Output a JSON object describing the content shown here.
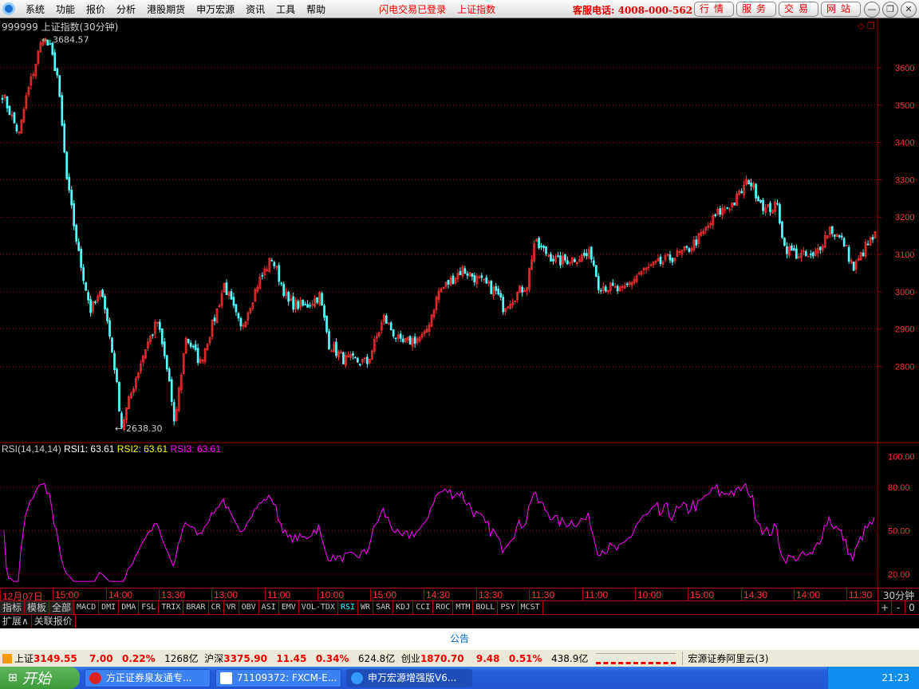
{
  "menubar": {
    "items": [
      "系统",
      "功能",
      "报价",
      "分析",
      "港股期货",
      "申万宏源",
      "资讯",
      "工具",
      "帮助"
    ],
    "status1": "闪电交易已登录",
    "status2": "上证指数",
    "hotline": "客服电话: 4008-000-562",
    "buttons": [
      "行情",
      "服务",
      "交易",
      "网站"
    ]
  },
  "chart": {
    "title": "999999 上证指数(30分钟)",
    "high_label": "3684.57",
    "low_label": "2638.30",
    "price_ticks": [
      3600,
      3500,
      3400,
      3300,
      3200,
      3100,
      3000,
      2900,
      2800
    ],
    "colors": {
      "up": "#ff3232",
      "down": "#54ffff",
      "grid": "#a00000",
      "rsi": "#ff00ff"
    }
  },
  "chart_data": {
    "type": "candlestick",
    "series_name": "上证指数",
    "approx_close_path": [
      [
        0,
        3530
      ],
      [
        7,
        3420
      ],
      [
        10,
        3520
      ],
      [
        17,
        3684
      ],
      [
        20,
        3650
      ],
      [
        23,
        3580
      ],
      [
        27,
        3300
      ],
      [
        32,
        3100
      ],
      [
        37,
        2950
      ],
      [
        42,
        3000
      ],
      [
        47,
        2800
      ],
      [
        50,
        2640
      ],
      [
        55,
        2750
      ],
      [
        60,
        2850
      ],
      [
        65,
        2920
      ],
      [
        70,
        2760
      ],
      [
        72,
        2640
      ],
      [
        77,
        2880
      ],
      [
        83,
        2810
      ],
      [
        90,
        2950
      ],
      [
        93,
        3020
      ],
      [
        100,
        2900
      ],
      [
        107,
        3020
      ],
      [
        113,
        3090
      ],
      [
        120,
        2970
      ],
      [
        127,
        2960
      ],
      [
        133,
        2990
      ],
      [
        137,
        2860
      ],
      [
        143,
        2820
      ],
      [
        153,
        2810
      ],
      [
        160,
        2930
      ],
      [
        167,
        2860
      ],
      [
        177,
        2880
      ],
      [
        183,
        3000
      ],
      [
        193,
        3060
      ],
      [
        207,
        3000
      ],
      [
        210,
        2960
      ],
      [
        220,
        3020
      ],
      [
        223,
        3130
      ],
      [
        233,
        3080
      ],
      [
        247,
        3100
      ],
      [
        250,
        3020
      ],
      [
        260,
        3000
      ],
      [
        267,
        3050
      ],
      [
        277,
        3080
      ],
      [
        287,
        3110
      ],
      [
        293,
        3150
      ],
      [
        300,
        3210
      ],
      [
        307,
        3240
      ],
      [
        313,
        3300
      ],
      [
        320,
        3220
      ],
      [
        325,
        3230
      ],
      [
        328,
        3120
      ],
      [
        333,
        3100
      ],
      [
        340,
        3090
      ],
      [
        347,
        3170
      ],
      [
        353,
        3130
      ],
      [
        357,
        3060
      ],
      [
        362,
        3120
      ],
      [
        366,
        3150
      ]
    ],
    "ylim": [
      2550,
      3720
    ]
  },
  "rsi": {
    "params": "RSI(14,14,14)",
    "rsi1": "RSI1: 63.61",
    "rsi2": "RSI2: 63.61",
    "rsi3": "RSI3: 63.61",
    "ticks": [
      "100.00",
      "80.00",
      "50.00",
      "20.00"
    ]
  },
  "timeaxis": {
    "labels": [
      "12月07日",
      "15:00",
      "14:00",
      "13:30",
      "13:00",
      "11:00",
      "10:00",
      "15:00",
      "14:30",
      "13:30",
      "11:30",
      "11:00",
      "10:00",
      "15:00",
      "14:30",
      "14:00",
      "11:30"
    ],
    "period": "30分钟"
  },
  "tabs": [
    "指标",
    "模板",
    "全部",
    "MACD",
    "DMI",
    "DMA",
    "FSL",
    "TRIX",
    "BRAR",
    "CR",
    "VR",
    "OBV",
    "ASI",
    "EMV",
    "VOL-TDX",
    "RSI",
    "WR",
    "SAR",
    "KDJ",
    "CCI",
    "ROC",
    "MTM",
    "BOLL",
    "PSY",
    "MCST"
  ],
  "zoom": [
    "+",
    "-",
    "0"
  ],
  "ext": [
    "扩展∧",
    "关联报价"
  ],
  "notice": "公告",
  "status": {
    "sh_label": "上证",
    "sh_val": "3149.55",
    "sh_chg": "7.00",
    "sh_pct": "0.22%",
    "sh_amt": "1268亿",
    "hs_label": "沪深",
    "hs_val": "3375.90",
    "hs_chg": "11.45",
    "hs_pct": "0.34%",
    "hs_amt": "624.8亿",
    "cy_label": "创业",
    "cy_val": "1870.70",
    "cy_chg": "9.48",
    "cy_pct": "0.51%",
    "cy_amt": "438.9亿",
    "server": "宏源证券阿里云(3)"
  },
  "taskbar": {
    "start": "开始",
    "tasks": [
      "方正证券泉友通专...",
      "71109372: FXCM-E...",
      "申万宏源增强版V6..."
    ],
    "clock": "21:23"
  }
}
